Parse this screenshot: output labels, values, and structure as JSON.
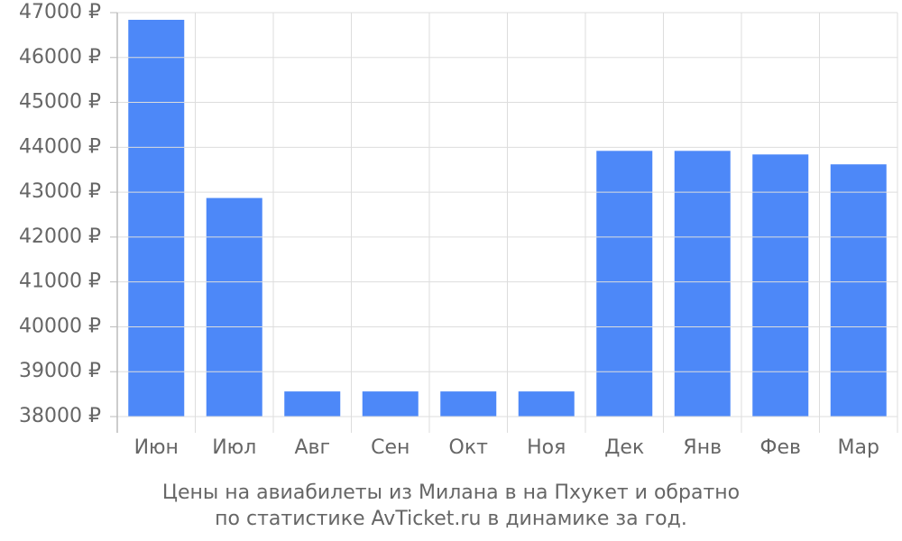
{
  "chart_data": {
    "type": "bar",
    "title": [
      "Цены на авиабилеты из Милана в на Пхукет и обратно",
      "по статистике AvTicket.ru в динамике за год."
    ],
    "categories": [
      "Июн",
      "Июл",
      "Авг",
      "Сен",
      "Окт",
      "Ноя",
      "Дек",
      "Янв",
      "Фев",
      "Мар"
    ],
    "values": [
      46840,
      42870,
      38560,
      38560,
      38560,
      38560,
      43920,
      43920,
      43840,
      43620
    ],
    "color": "#4d88f8",
    "ylim": [
      38000,
      47000
    ],
    "yticks": [
      {
        "value": 38000,
        "label": "38000 ₽"
      },
      {
        "value": 39000,
        "label": "39000 ₽"
      },
      {
        "value": 40000,
        "label": "40000 ₽"
      },
      {
        "value": 41000,
        "label": "41000 ₽"
      },
      {
        "value": 42000,
        "label": "42000 ₽"
      },
      {
        "value": 43000,
        "label": "43000 ₽"
      },
      {
        "value": 44000,
        "label": "44000 ₽"
      },
      {
        "value": 45000,
        "label": "45000 ₽"
      },
      {
        "value": 46000,
        "label": "46000 ₽"
      },
      {
        "value": 47000,
        "label": "47000 ₽"
      }
    ],
    "grid": true
  }
}
